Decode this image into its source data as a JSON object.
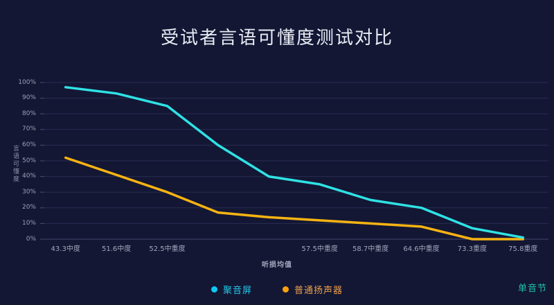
{
  "chart_data": {
    "type": "line",
    "title": "受试者言语可懂度测试对比",
    "xlabel": "听损均值",
    "ylabel": "言语可懂度",
    "ylim": [
      0,
      100
    ],
    "ytick_step": 10,
    "ytick_suffix": "%",
    "grid": true,
    "legend_position": "bottom-center",
    "annotation": "单音节",
    "categories": [
      "43.3中度",
      "51.6中度",
      "52.5中重度",
      "",
      "",
      "57.5中重度",
      "58.7中重度",
      "64.6中重度",
      "73.3重度",
      "75.8重度"
    ],
    "series": [
      {
        "name": "聚音屏",
        "line_color": "#2fe2e4",
        "dot_color": "#0fc8f2",
        "text_color": "#23c6e6",
        "values": [
          97,
          93,
          85,
          60,
          40,
          35,
          25,
          20,
          7,
          1
        ]
      },
      {
        "name": "普通扬声器",
        "line_color": "#f7b312",
        "dot_color": "#fba00a",
        "text_color": "#eda04b",
        "values": [
          52,
          41,
          30,
          17,
          14,
          12,
          10,
          8,
          0,
          0
        ]
      }
    ]
  },
  "colors": {
    "background": "#131734",
    "title": "#e9ecf4",
    "grid_line": "#282d52",
    "axis_line": "#434a6e",
    "y_tick_label": "#9aa1b6",
    "x_tick_label": "#a0a7bb",
    "y_axis_title": "#8c93a9",
    "x_axis_title": "#a6adc2",
    "annotation": "#1dc3a8"
  }
}
